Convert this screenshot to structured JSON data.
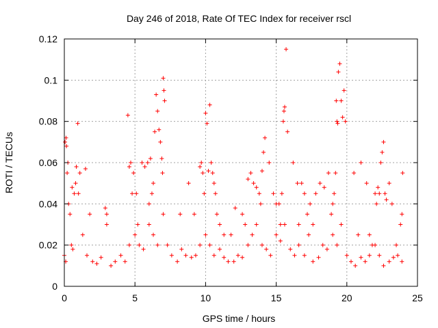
{
  "chart_data": {
    "type": "scatter",
    "title": "Day 246 of 2018, Rate Of TEC Index for receiver rscl",
    "xlabel": "GPS time / hours",
    "ylabel": "ROTI / TECUs",
    "xlim": [
      0,
      25
    ],
    "ylim": [
      0,
      0.12
    ],
    "x_ticks": [
      0,
      5,
      10,
      15,
      20,
      25
    ],
    "x_tick_labels": [
      "0",
      "5",
      "10",
      "15",
      "20",
      "25"
    ],
    "y_ticks": [
      0,
      0.02,
      0.04,
      0.06,
      0.08,
      0.1,
      0.12
    ],
    "y_tick_labels": [
      "0",
      "0.02",
      "0.04",
      "0.06",
      "0.08",
      "0.1",
      "0.12"
    ],
    "grid": true,
    "marker": "+",
    "color": "#ff0000",
    "series": [
      {
        "name": "ROTI",
        "x": [
          0.0,
          0.1,
          0.15,
          0.2,
          0.3,
          0.5,
          0.6,
          0.8,
          1.0,
          1.3,
          1.6,
          2.0,
          2.3,
          2.6,
          3.0,
          3.3,
          3.6,
          4.0,
          4.3,
          4.6,
          5.0,
          5.3,
          5.6,
          6.0,
          6.3,
          6.6,
          7.0,
          7.3,
          7.6,
          8.0,
          8.3,
          8.6,
          9.0,
          9.3,
          9.6,
          10.0,
          10.3,
          10.6,
          11.0,
          11.3,
          11.6,
          12.0,
          12.3,
          12.6,
          13.0,
          13.3,
          13.6,
          14.0,
          14.3,
          14.6,
          15.0,
          15.3,
          15.6,
          16.0,
          16.3,
          16.6,
          17.0,
          17.3,
          17.6,
          18.0,
          18.3,
          18.6,
          19.0,
          19.3,
          19.6,
          20.0,
          20.3,
          20.6,
          21.0,
          21.3,
          21.6,
          22.0,
          22.3,
          22.6,
          23.0,
          23.3,
          23.6,
          23.9,
          0.05,
          0.12,
          0.25,
          0.4,
          0.55,
          0.7,
          0.85,
          0.95,
          1.1,
          1.5,
          1.8,
          2.9,
          3.0,
          4.5,
          4.6,
          4.7,
          4.8,
          4.9,
          5.1,
          5.2,
          5.9,
          6.1,
          6.2,
          6.3,
          6.4,
          6.5,
          6.6,
          6.7,
          6.8,
          6.9,
          6.95,
          7.0,
          7.05,
          7.1,
          9.6,
          9.7,
          9.8,
          9.9,
          10.0,
          10.1,
          10.2,
          10.3,
          10.4,
          10.5,
          10.6,
          10.7,
          10.8,
          11.0,
          11.3,
          12.1,
          12.6,
          13.0,
          13.2,
          13.4,
          13.6,
          13.8,
          13.9,
          14.0,
          14.1,
          14.2,
          14.5,
          14.8,
          15.0,
          15.2,
          15.3,
          15.4,
          15.5,
          15.55,
          15.6,
          15.7,
          15.8,
          16.2,
          16.5,
          16.8,
          17.0,
          17.4,
          17.6,
          17.8,
          18.1,
          18.4,
          18.7,
          18.9,
          19.0,
          19.1,
          19.2,
          19.25,
          19.3,
          19.35,
          19.4,
          19.5,
          19.6,
          19.7,
          19.8,
          19.9,
          20.5,
          21.0,
          21.4,
          21.6,
          21.8,
          22.0,
          22.1,
          22.2,
          22.3,
          22.4,
          22.5,
          22.6,
          22.7,
          22.8,
          23.0,
          23.2,
          23.8,
          23.9,
          23.95,
          5.5,
          5.7,
          6.0,
          8.2,
          8.8,
          9.2,
          11.8,
          12.8,
          16.6,
          17.2,
          20.8,
          23.5
        ],
        "y": [
          0.015,
          0.012,
          0.068,
          0.055,
          0.04,
          0.02,
          0.018,
          0.05,
          0.045,
          0.025,
          0.015,
          0.012,
          0.011,
          0.014,
          0.03,
          0.01,
          0.012,
          0.015,
          0.012,
          0.02,
          0.025,
          0.02,
          0.018,
          0.03,
          0.025,
          0.02,
          0.035,
          0.02,
          0.015,
          0.012,
          0.018,
          0.015,
          0.014,
          0.015,
          0.02,
          0.025,
          0.02,
          0.015,
          0.018,
          0.014,
          0.012,
          0.012,
          0.015,
          0.014,
          0.02,
          0.025,
          0.03,
          0.02,
          0.018,
          0.015,
          0.025,
          0.022,
          0.03,
          0.018,
          0.015,
          0.02,
          0.015,
          0.025,
          0.012,
          0.014,
          0.02,
          0.018,
          0.025,
          0.02,
          0.03,
          0.015,
          0.012,
          0.01,
          0.014,
          0.012,
          0.015,
          0.02,
          0.015,
          0.01,
          0.012,
          0.014,
          0.015,
          0.012,
          0.07,
          0.072,
          0.06,
          0.035,
          0.048,
          0.045,
          0.058,
          0.079,
          0.055,
          0.057,
          0.035,
          0.038,
          0.035,
          0.083,
          0.058,
          0.06,
          0.045,
          0.055,
          0.045,
          0.03,
          0.06,
          0.062,
          0.045,
          0.05,
          0.075,
          0.093,
          0.085,
          0.076,
          0.07,
          0.062,
          0.055,
          0.101,
          0.095,
          0.09,
          0.058,
          0.06,
          0.055,
          0.045,
          0.084,
          0.079,
          0.056,
          0.088,
          0.06,
          0.055,
          0.05,
          0.045,
          0.035,
          0.03,
          0.025,
          0.038,
          0.035,
          0.052,
          0.055,
          0.05,
          0.048,
          0.045,
          0.04,
          0.056,
          0.065,
          0.072,
          0.06,
          0.045,
          0.04,
          0.04,
          0.03,
          0.045,
          0.08,
          0.085,
          0.087,
          0.115,
          0.075,
          0.06,
          0.05,
          0.05,
          0.045,
          0.04,
          0.03,
          0.045,
          0.05,
          0.048,
          0.055,
          0.035,
          0.04,
          0.045,
          0.055,
          0.09,
          0.08,
          0.079,
          0.104,
          0.108,
          0.09,
          0.082,
          0.095,
          0.08,
          0.055,
          0.06,
          0.05,
          0.025,
          0.02,
          0.045,
          0.04,
          0.048,
          0.045,
          0.06,
          0.065,
          0.07,
          0.045,
          0.042,
          0.05,
          0.04,
          0.03,
          0.035,
          0.055,
          0.06,
          0.058,
          0.04,
          0.035,
          0.05,
          0.035,
          0.025,
          0.03,
          0.03,
          0.035,
          0.025,
          0.02
        ]
      }
    ]
  }
}
